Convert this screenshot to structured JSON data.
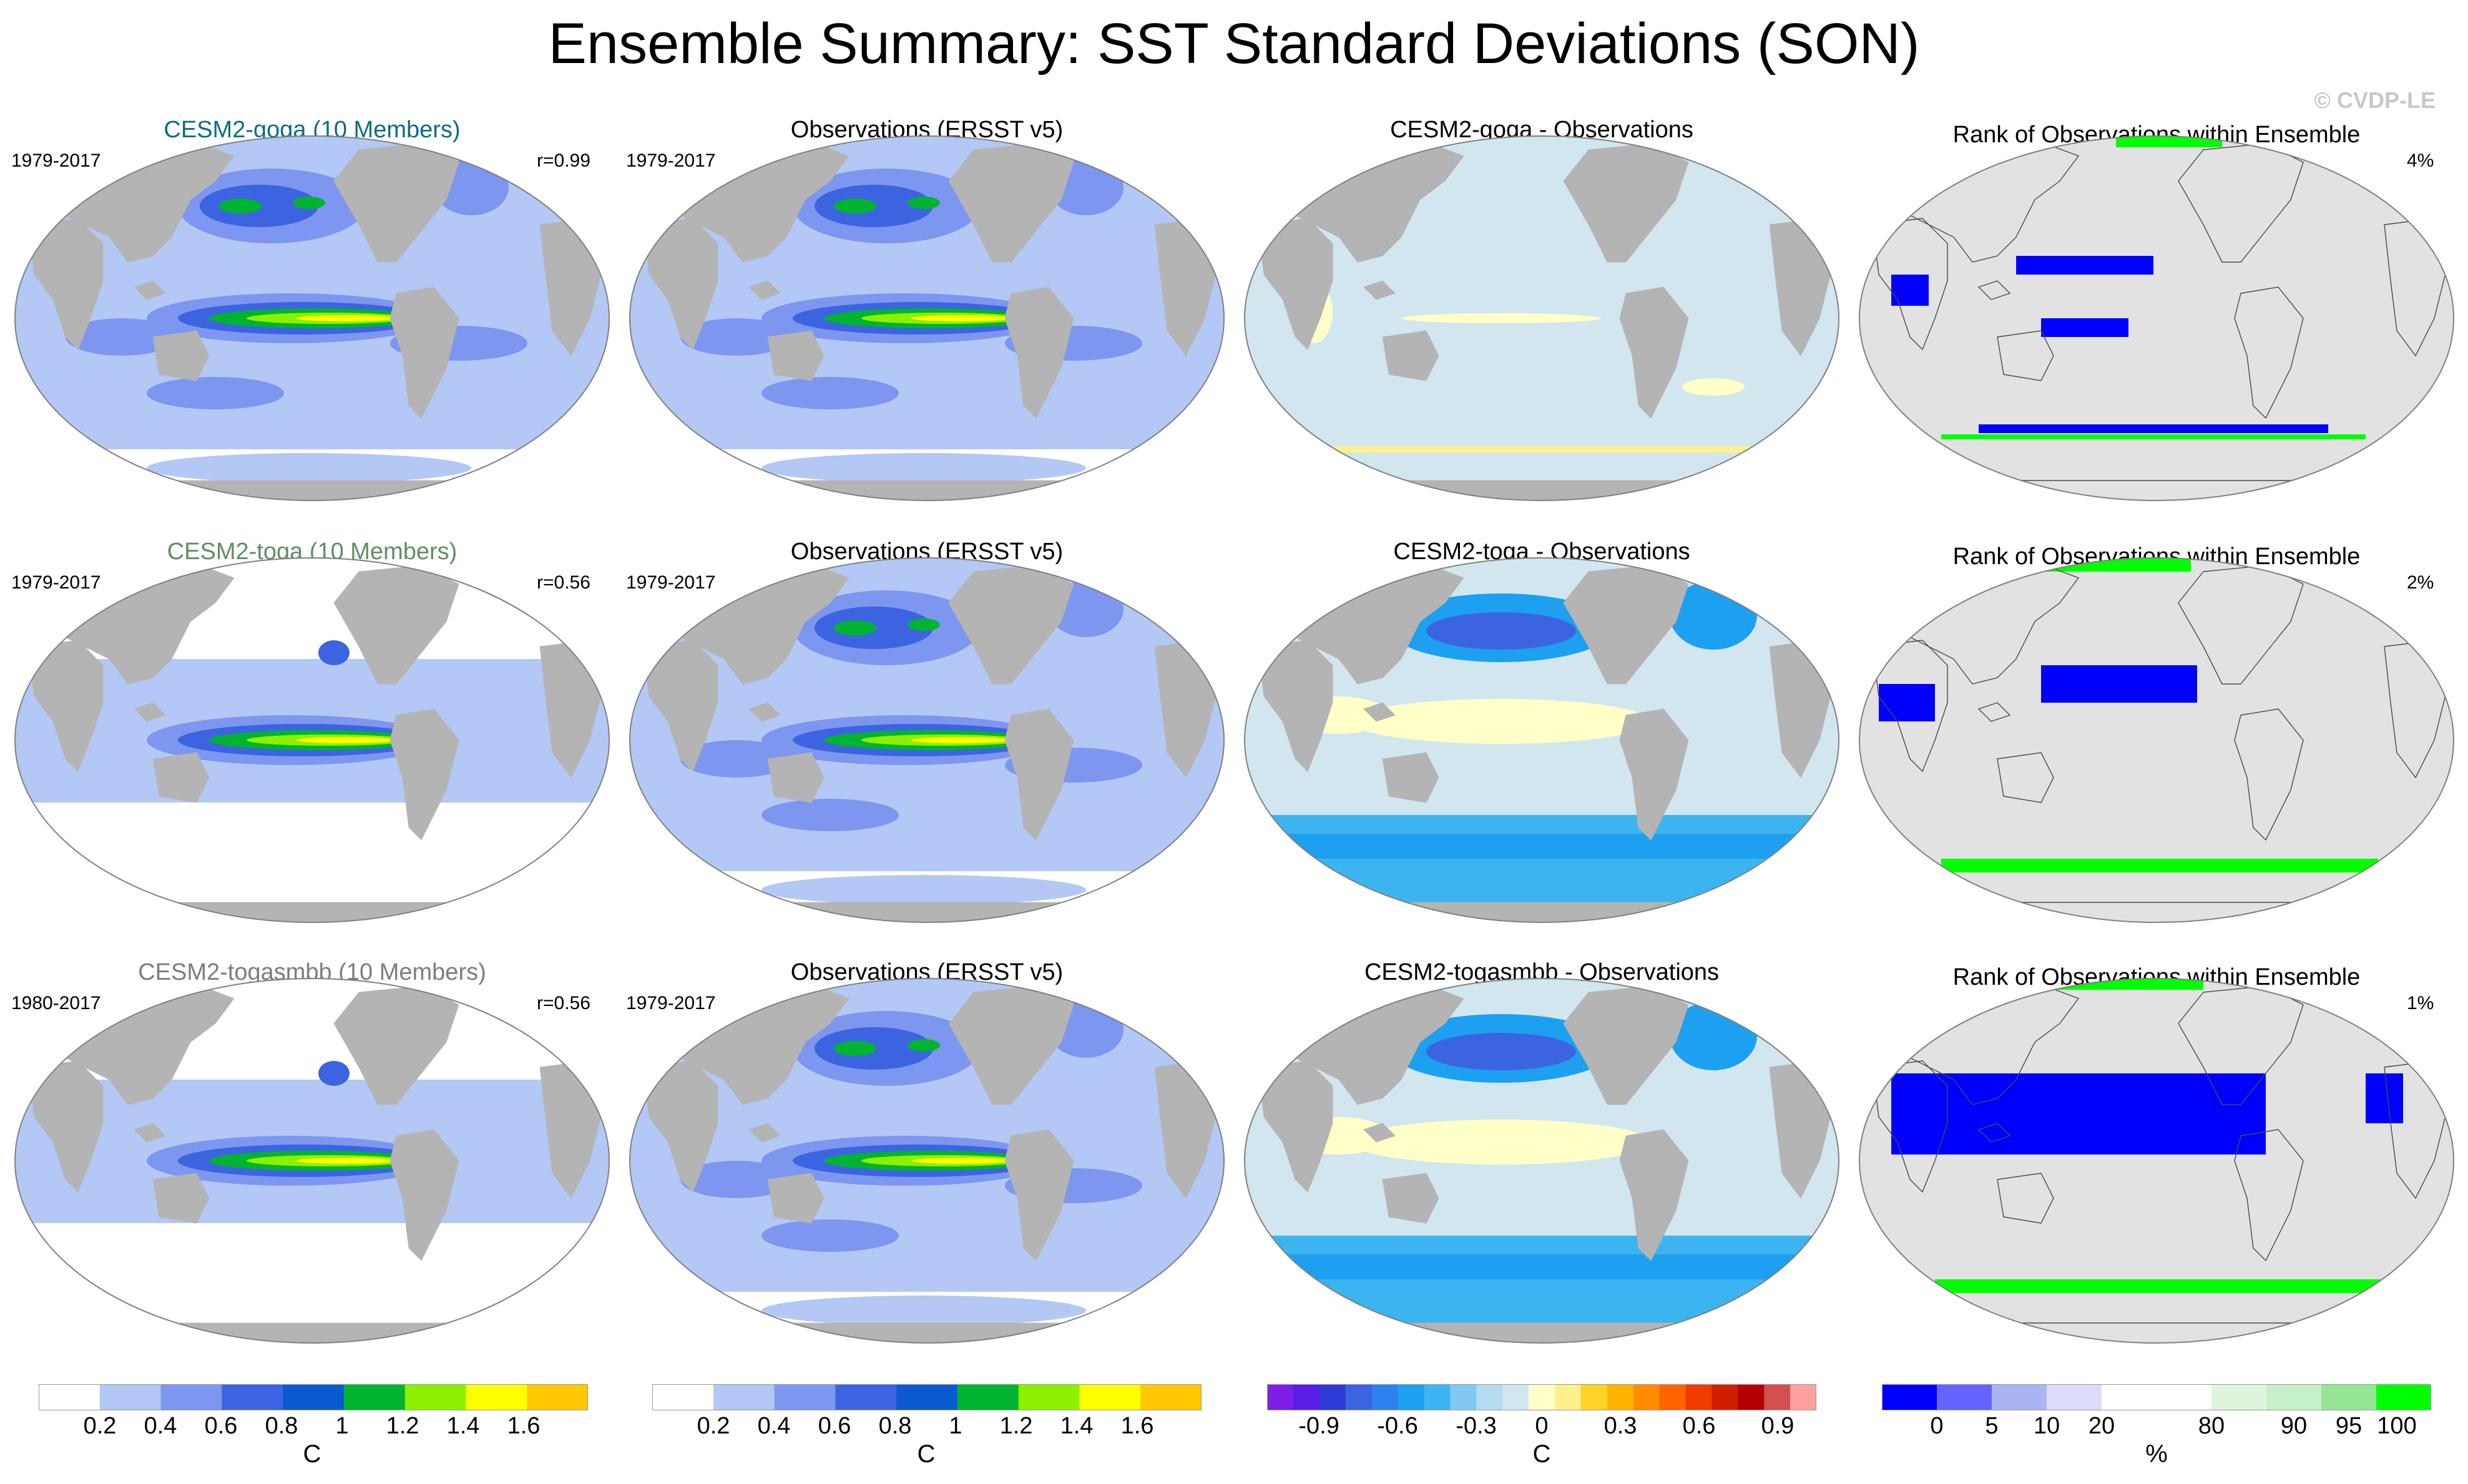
{
  "title": "Ensemble Summary: SST Standard Deviations (SON)",
  "credit": "© CVDP-LE",
  "colors": {
    "land": "#b4b4b4",
    "land_light": "#e2e2e2",
    "ocean_low": "#ffffff",
    "sst_levels": [
      "#ffffff",
      "#b4c8f5",
      "#7d96ef",
      "#3c64e1",
      "#0a5ad2",
      "#00b432",
      "#8cf000",
      "#ffff00",
      "#ffc800",
      "#ff9600",
      "#ff3200"
    ],
    "diff_levels": [
      "#7d1ee6",
      "#5a1ee6",
      "#2d3cd7",
      "#3c64e1",
      "#2d82f0",
      "#1ea0f0",
      "#3cb4f0",
      "#82c8f0",
      "#b4dcf0",
      "#d2e6f0",
      "#ffffc8",
      "#fff08c",
      "#ffd228",
      "#ffb400",
      "#ff8c00",
      "#ff6400",
      "#f03c00",
      "#d21e00",
      "#b40000",
      "#d25050",
      "#ffa0a0"
    ],
    "rank_levels": [
      "#0000ff",
      "#6464ff",
      "#aab4f0",
      "#dcdcfa",
      "#ffffff",
      "#ffffff",
      "#dcf5dc",
      "#c8f0c8",
      "#96e696",
      "#00ff00"
    ]
  },
  "rows": [
    {
      "ensemble_title": "CESM2-goga (10 Members)",
      "ensemble_title_color": "#0d6b8a",
      "ensemble_years": "1979-2017",
      "pattern_corr": "r=0.99",
      "obs_title": "Observations (ERSST v5)",
      "obs_years": "1979-2017",
      "diff_title": "CESM2-goga - Observations",
      "rank_title": "Rank of Observations within Ensemble",
      "rank_pct": "4%"
    },
    {
      "ensemble_title": "CESM2-toga (10 Members)",
      "ensemble_title_color": "#5f8f5f",
      "ensemble_years": "1979-2017",
      "pattern_corr": "r=0.56",
      "obs_title": "Observations (ERSST v5)",
      "obs_years": "1979-2017",
      "diff_title": "CESM2-toga - Observations",
      "rank_title": "Rank of Observations within Ensemble",
      "rank_pct": "2%"
    },
    {
      "ensemble_title": "CESM2-togasmbb (10 Members)",
      "ensemble_title_color": "#7d7d7d",
      "ensemble_years": "1980-2017",
      "pattern_corr": "r=0.56",
      "obs_title": "Observations (ERSST v5)",
      "obs_years": "1979-2017",
      "diff_title": "CESM2-togasmbb - Observations",
      "rank_title": "Rank of Observations within Ensemble",
      "rank_pct": "1%"
    }
  ],
  "colorbars": [
    {
      "labels": [
        "0.2",
        "0.4",
        "0.6",
        "0.8",
        "1",
        "1.2",
        "1.4",
        "1.6"
      ],
      "unit": "C"
    },
    {
      "labels": [
        "0.2",
        "0.4",
        "0.6",
        "0.8",
        "1",
        "1.2",
        "1.4",
        "1.6"
      ],
      "unit": "C"
    },
    {
      "labels": [
        "-0.9",
        "-0.6",
        "-0.3",
        "0",
        "0.3",
        "0.6",
        "0.9"
      ],
      "unit": "C"
    },
    {
      "labels": [
        "0",
        "5",
        "10",
        "20",
        "80",
        "90",
        "95",
        "100"
      ],
      "unit": "%"
    }
  ]
}
